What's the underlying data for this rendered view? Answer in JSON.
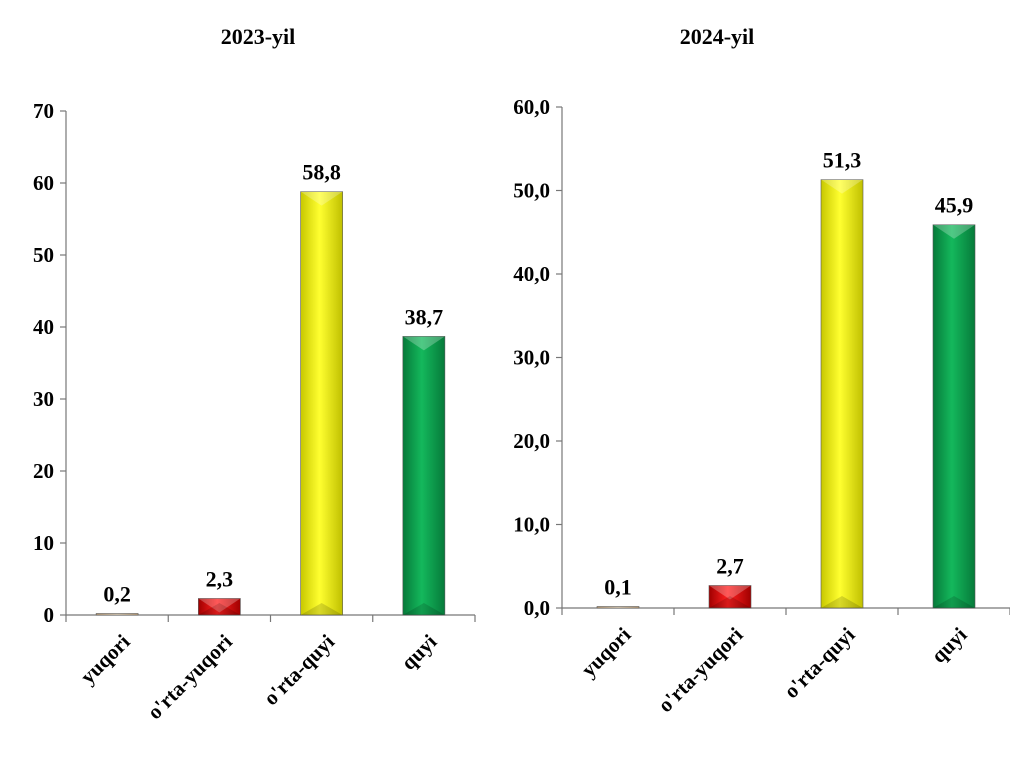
{
  "chart_data": [
    {
      "type": "bar",
      "title": "2023-yil",
      "categories": [
        "yuqori",
        "o'rta-yuqori",
        "o'rta-quyi",
        "quyi"
      ],
      "values": [
        0.2,
        2.3,
        58.8,
        38.7
      ],
      "value_labels": [
        "0,2",
        "2,3",
        "58,8",
        "38,7"
      ],
      "colors": [
        "#e8c9a0",
        "#e01010",
        "#f2f200",
        "#10a050"
      ],
      "ylim": [
        0,
        70
      ],
      "yticks": [
        "0",
        "10",
        "20",
        "30",
        "40",
        "50",
        "60",
        "70"
      ],
      "xlabel": "",
      "ylabel": "",
      "grid": false,
      "legend": false
    },
    {
      "type": "bar",
      "title": "2024-yil",
      "categories": [
        "yuqori",
        "o'rta-yuqori",
        "o'rta-quyi",
        "quyi"
      ],
      "values": [
        0.1,
        2.7,
        51.3,
        45.9
      ],
      "value_labels": [
        "0,1",
        "2,7",
        "51,3",
        "45,9"
      ],
      "colors": [
        "#e8c9a0",
        "#e01010",
        "#f2f200",
        "#10a050"
      ],
      "ylim": [
        0,
        60
      ],
      "yticks": [
        "0,0",
        "10,0",
        "20,0",
        "30,0",
        "40,0",
        "50,0",
        "60,0"
      ],
      "xlabel": "",
      "ylabel": "",
      "grid": false,
      "legend": false
    }
  ]
}
